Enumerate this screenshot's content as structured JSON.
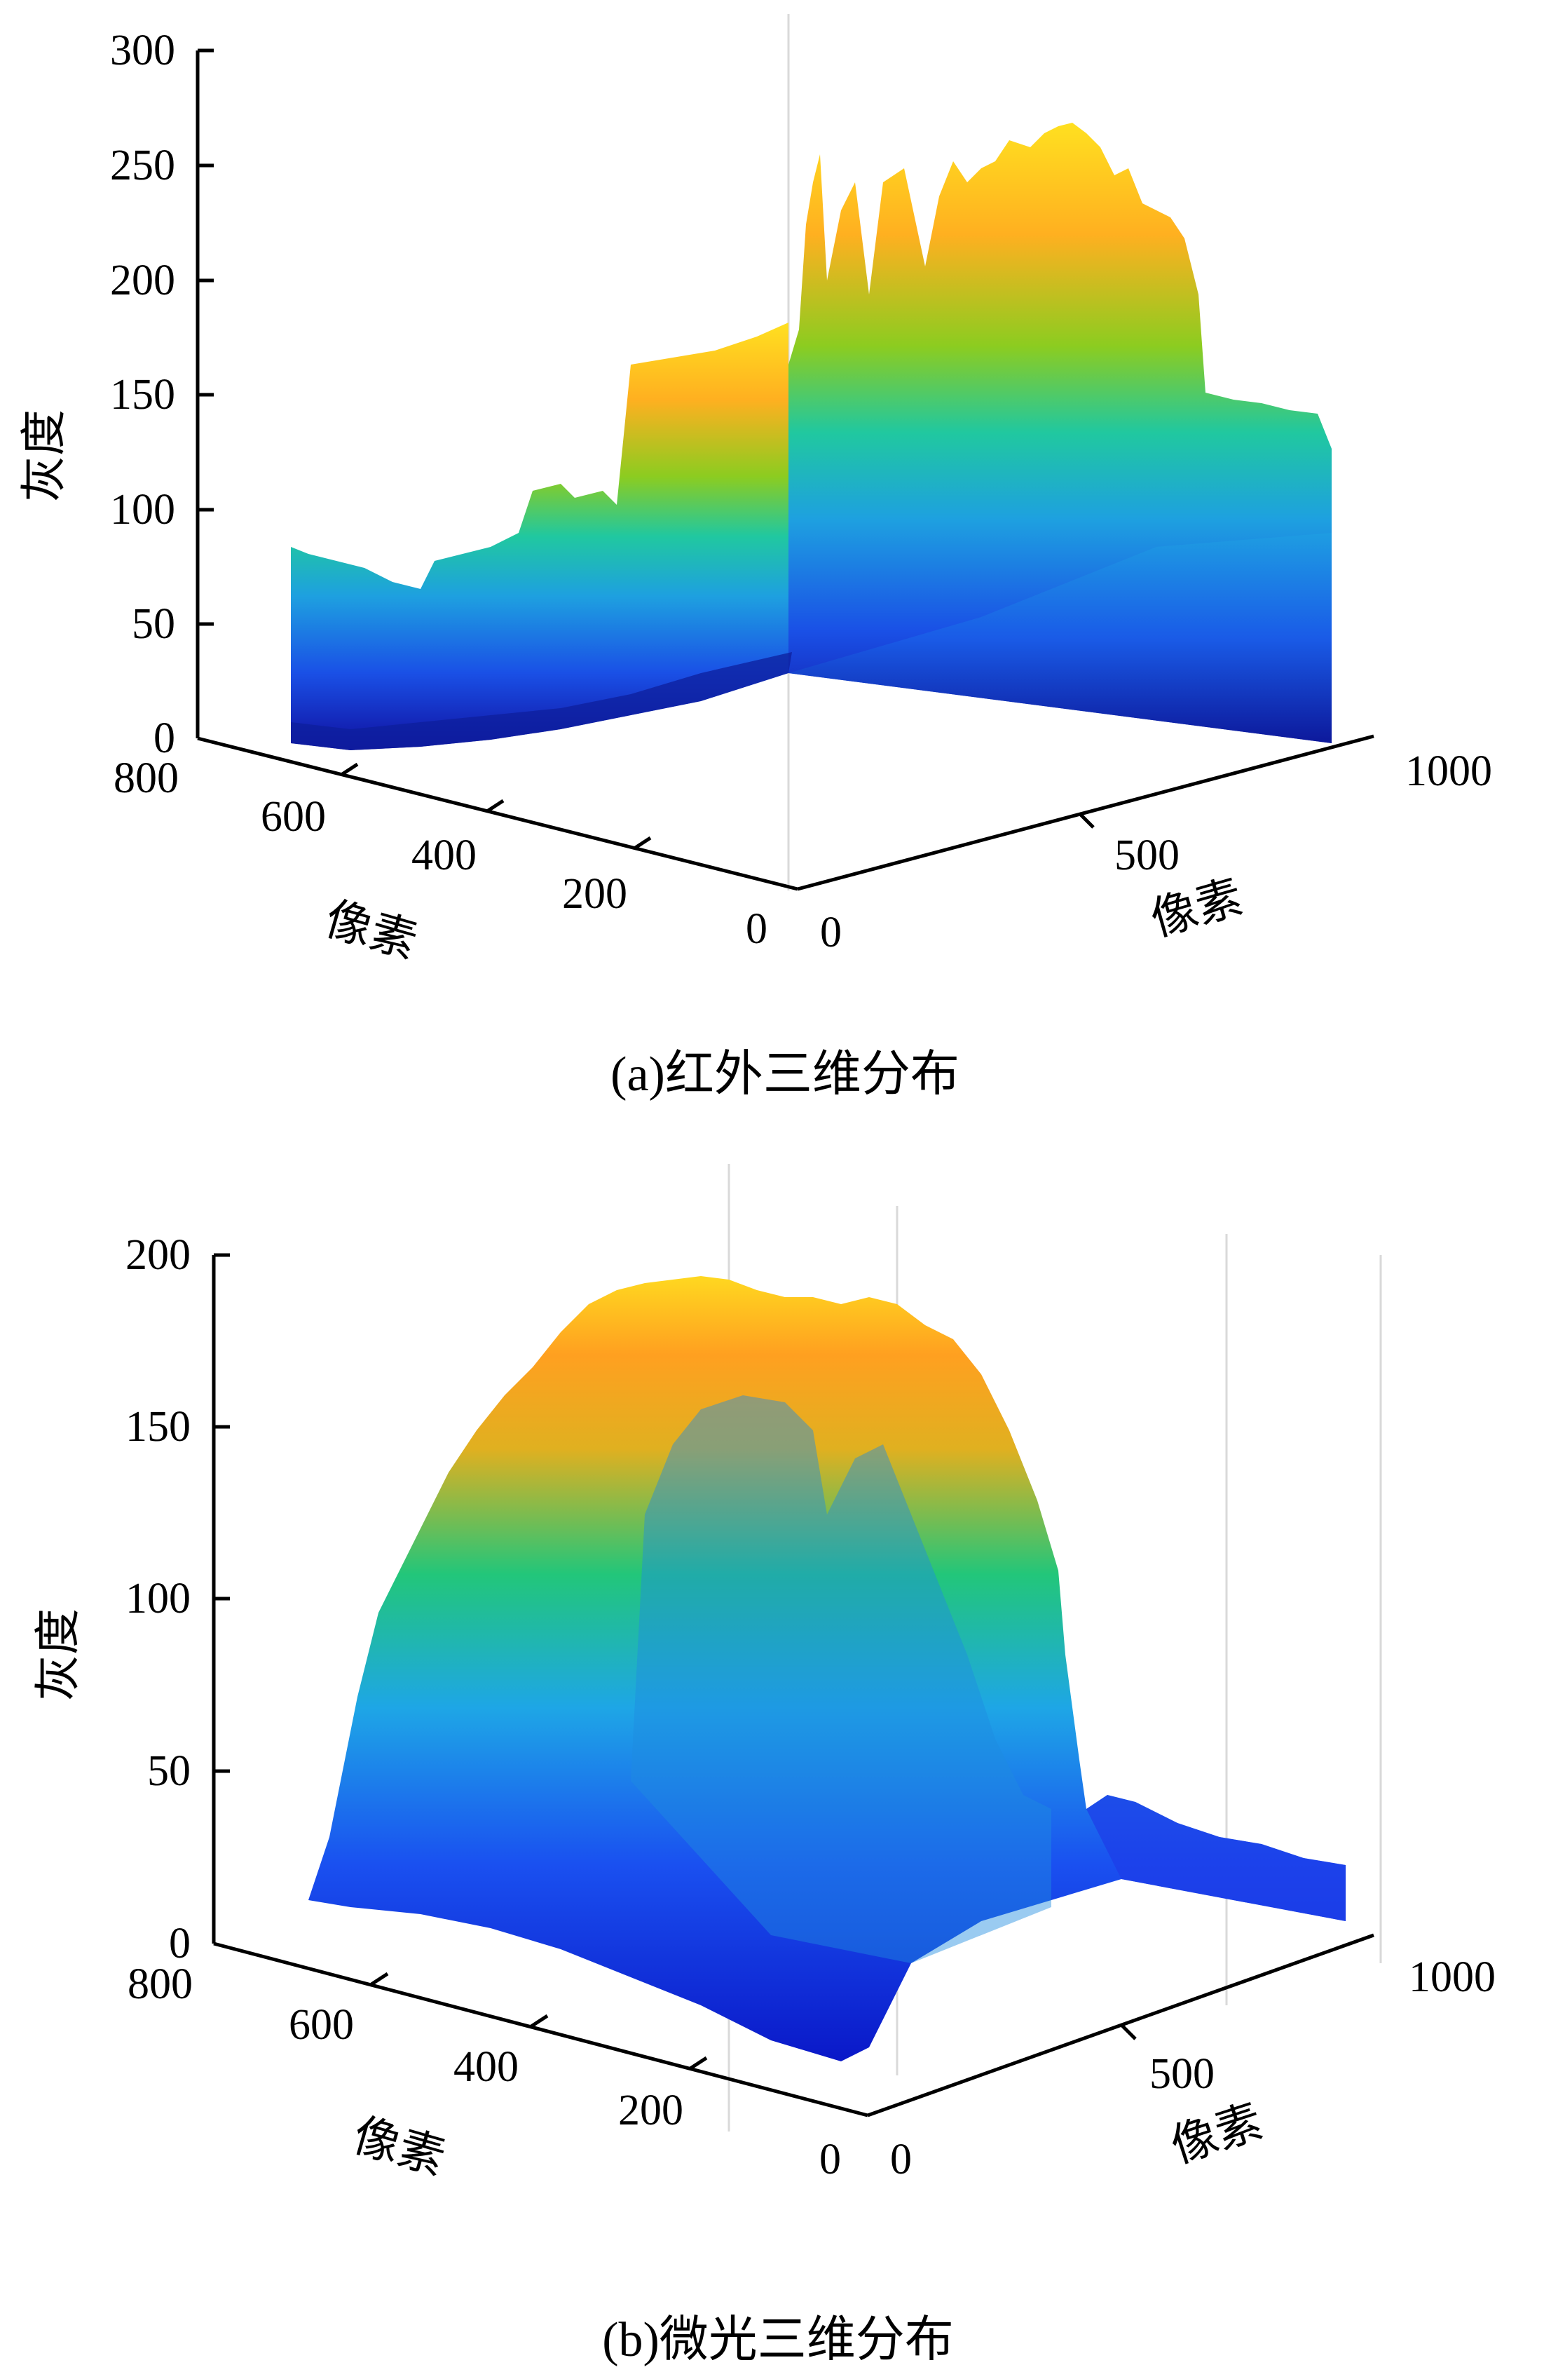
{
  "chart_data": [
    {
      "type": "surface",
      "caption": "(a)红外三维分布",
      "z_label": "灰度",
      "x_label": "像素",
      "y_label": "像素",
      "z_ticks": [
        "300",
        "250",
        "200",
        "150",
        "100",
        "50",
        "0"
      ],
      "x_ticks": [
        "800",
        "600",
        "400",
        "200",
        "0"
      ],
      "y_ticks": [
        "0",
        "500",
        "1000"
      ],
      "zlim": [
        0,
        300
      ],
      "xlim": [
        0,
        800
      ],
      "ylim": [
        0,
        1000
      ],
      "colormap": [
        "#1010a0",
        "#1a50e6",
        "#1ea0e0",
        "#20c8a0",
        "#8ccc20",
        "#ffb020",
        "#ffe020"
      ],
      "grid": true
    },
    {
      "type": "surface",
      "caption": "(b)微光三维分布",
      "z_label": "灰度",
      "x_label": "像素",
      "y_label": "像素",
      "z_ticks": [
        "200",
        "150",
        "100",
        "50",
        "0"
      ],
      "x_ticks": [
        "800",
        "600",
        "400",
        "200",
        "0"
      ],
      "y_ticks": [
        "0",
        "500",
        "1000"
      ],
      "zlim": [
        0,
        200
      ],
      "xlim": [
        0,
        800
      ],
      "ylim": [
        0,
        1000
      ],
      "colormap": [
        "#1010a0",
        "#1a50e6",
        "#1ea0e0",
        "#20c8a0",
        "#8ccc20",
        "#ffb020",
        "#ffe020"
      ],
      "grid": true
    }
  ]
}
